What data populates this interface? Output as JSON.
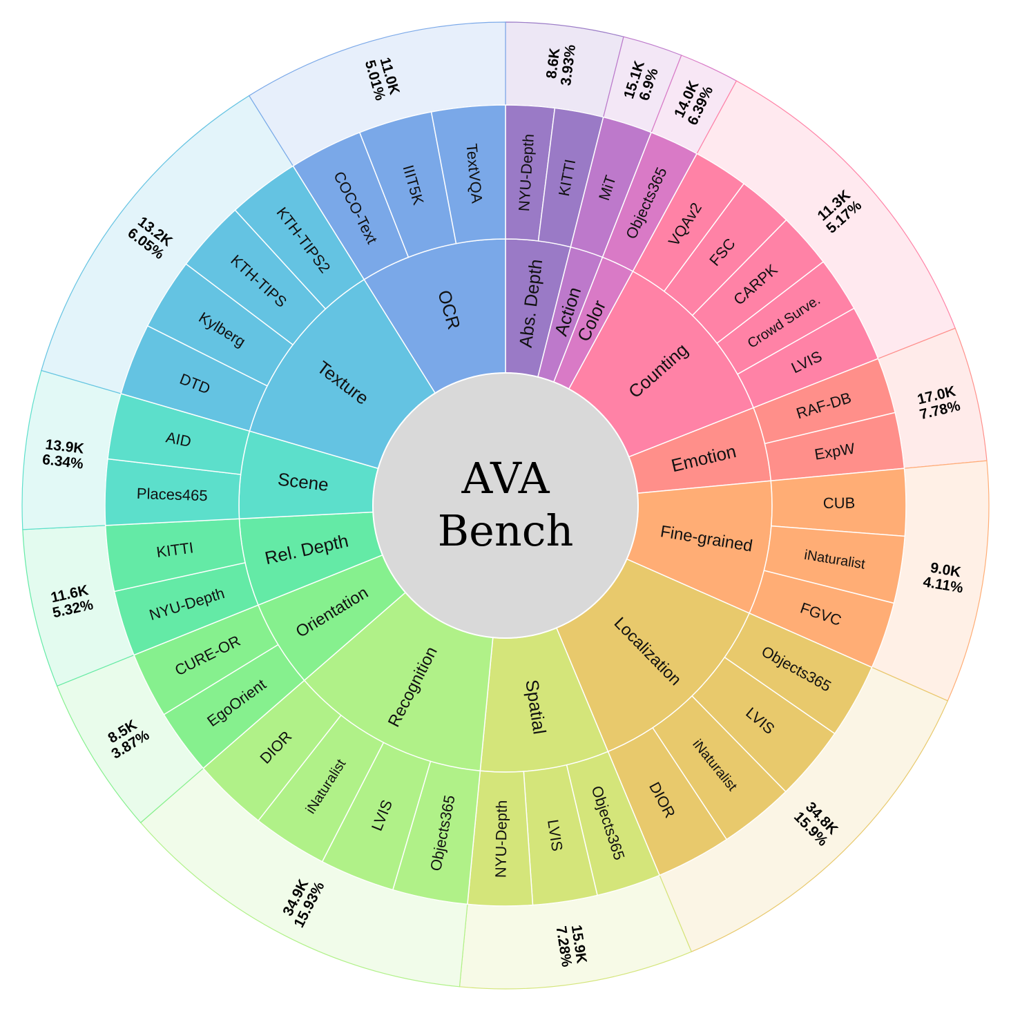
{
  "chart_data": {
    "type": "sunburst",
    "title": "AVA Bench",
    "center_lines": [
      "AVA",
      "Bench"
    ],
    "categories": [
      {
        "name": "Abs. Depth",
        "count": "8.6K",
        "percent": "3.93%",
        "share": 3.93,
        "color": "#9a7ac6",
        "datasets": [
          "NYU-Depth",
          "KITTI"
        ]
      },
      {
        "name": "Action",
        "count": "15.1K",
        "percent": "6.9%",
        "share": 2.0,
        "color": "#bd79cb",
        "datasets": [
          "MiT"
        ]
      },
      {
        "name": "Color",
        "count": "14.0K",
        "percent": "6.39%",
        "share": 2.0,
        "color": "#d97ac6",
        "datasets": [
          "Objects365"
        ]
      },
      {
        "name": "Counting",
        "count": "11.3K",
        "percent": "5.17%",
        "share": 11.1,
        "color": "#ff82a6",
        "datasets": [
          "VQAv2",
          "FSC",
          "CARPK",
          "Crowd Surve.",
          "LVIS"
        ]
      },
      {
        "name": "Emotion",
        "count": "17.0K",
        "percent": "7.78%",
        "share": 4.5,
        "color": "#ff8f8a",
        "datasets": [
          "RAF-DB",
          "ExpW"
        ]
      },
      {
        "name": "Fine-grained",
        "count": "9.0K",
        "percent": "4.11%",
        "share": 8.1,
        "color": "#ffad75",
        "datasets": [
          "CUB",
          "iNaturalist",
          "FGVC"
        ]
      },
      {
        "name": "Localization",
        "count": "34.8K",
        "percent": "15.9%",
        "share": 12.1,
        "color": "#e8c96c",
        "datasets": [
          "Objects365",
          "LVIS",
          "iNaturalist",
          "DIOR"
        ]
      },
      {
        "name": "Spatial",
        "count": "15.9K",
        "percent": "7.28%",
        "share": 7.8,
        "color": "#d4e57a",
        "datasets": [
          "Objects365",
          "LVIS",
          "NYU-Depth"
        ]
      },
      {
        "name": "Recognition",
        "count": "34.9K",
        "percent": "15.93%",
        "share": 12.1,
        "color": "#b0f188",
        "datasets": [
          "Objects365",
          "LVIS",
          "iNaturalist",
          "DIOR"
        ]
      },
      {
        "name": "Orientation",
        "count": "8.5K",
        "percent": "3.87%",
        "share": 5.3,
        "color": "#86f08e",
        "datasets": [
          "EgoOrient",
          "CURE-OR"
        ]
      },
      {
        "name": "Rel. Depth",
        "count": "11.6K",
        "percent": "5.32%",
        "share": 5.3,
        "color": "#64eaa6",
        "datasets": [
          "NYU-Depth",
          "KITTI"
        ]
      },
      {
        "name": "Scene",
        "count": "13.9K",
        "percent": "6.34%",
        "share": 5.3,
        "color": "#5cdfcb",
        "datasets": [
          "Places465",
          "AID"
        ]
      },
      {
        "name": "Texture",
        "count": "13.2K",
        "percent": "6.05%",
        "share": 11.6,
        "color": "#64c3e2",
        "datasets": [
          "DTD",
          "Kylberg",
          "KTH-TIPS",
          "KTH-TIPS2"
        ]
      },
      {
        "name": "OCR",
        "count": "11.0K",
        "percent": "5.01%",
        "share": 8.9,
        "color": "#7aa8e8",
        "datasets": [
          "COCO-Text",
          "IIIT5K",
          "TextVQA"
        ]
      }
    ]
  }
}
